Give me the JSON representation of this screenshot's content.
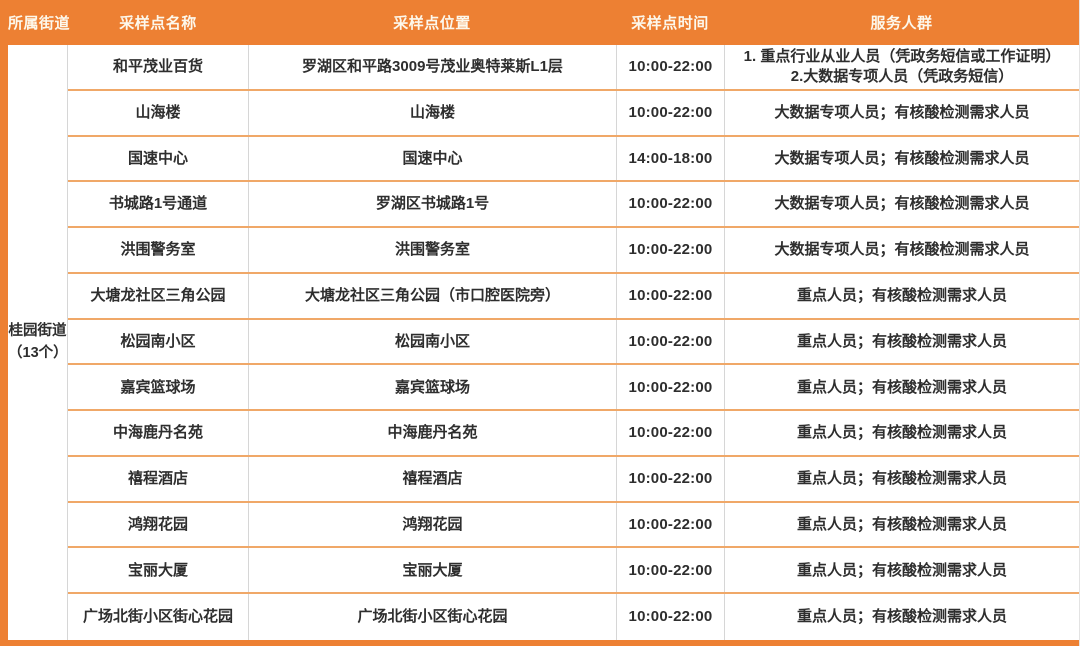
{
  "table": {
    "headers": [
      "所属街道",
      "采样点名称",
      "采样点位置",
      "采样点时间",
      "服务人群"
    ],
    "street_group": {
      "name": "桂园街道",
      "count_label": "（13个）"
    },
    "rows": [
      {
        "name": "和平茂业百货",
        "location": "罗湖区和平路3009号茂业奥特莱斯L1层",
        "time": "10:00-22:00",
        "service": "1. 重点行业从业人员（凭政务短信或工作证明）\n2.大数据专项人员（凭政务短信）"
      },
      {
        "name": "山海楼",
        "location": "山海楼",
        "time": "10:00-22:00",
        "service": "大数据专项人员；有核酸检测需求人员"
      },
      {
        "name": "国速中心",
        "location": "国速中心",
        "time": "14:00-18:00",
        "service": "大数据专项人员；有核酸检测需求人员"
      },
      {
        "name": "书城路1号通道",
        "location": "罗湖区书城路1号",
        "time": "10:00-22:00",
        "service": "大数据专项人员；有核酸检测需求人员"
      },
      {
        "name": "洪围警务室",
        "location": "洪围警务室",
        "time": "10:00-22:00",
        "service": "大数据专项人员；有核酸检测需求人员"
      },
      {
        "name": "大塘龙社区三角公园",
        "location": "大塘龙社区三角公园（市口腔医院旁）",
        "time": "10:00-22:00",
        "service": "重点人员；有核酸检测需求人员"
      },
      {
        "name": "松园南小区",
        "location": "松园南小区",
        "time": "10:00-22:00",
        "service": "重点人员；有核酸检测需求人员"
      },
      {
        "name": "嘉宾篮球场",
        "location": "嘉宾篮球场",
        "time": "10:00-22:00",
        "service": "重点人员；有核酸检测需求人员"
      },
      {
        "name": "中海鹿丹名苑",
        "location": "中海鹿丹名苑",
        "time": "10:00-22:00",
        "service": "重点人员；有核酸检测需求人员"
      },
      {
        "name": "禧程酒店",
        "location": "禧程酒店",
        "time": "10:00-22:00",
        "service": "重点人员；有核酸检测需求人员"
      },
      {
        "name": "鸿翔花园",
        "location": "鸿翔花园",
        "time": "10:00-22:00",
        "service": "重点人员；有核酸检测需求人员"
      },
      {
        "name": "宝丽大厦",
        "location": "宝丽大厦",
        "time": "10:00-22:00",
        "service": "重点人员；有核酸检测需求人员"
      },
      {
        "name": "广场北街小区街心花园",
        "location": "广场北街小区街心花园",
        "time": "10:00-22:00",
        "service": "重点人员；有核酸检测需求人员"
      }
    ],
    "colors": {
      "header_bg": "#ED8033",
      "row_border": "#F0A868",
      "col_border": "#D6D6D6",
      "header_text": "#FDF8EC",
      "body_text": "#2E2E2E"
    }
  }
}
